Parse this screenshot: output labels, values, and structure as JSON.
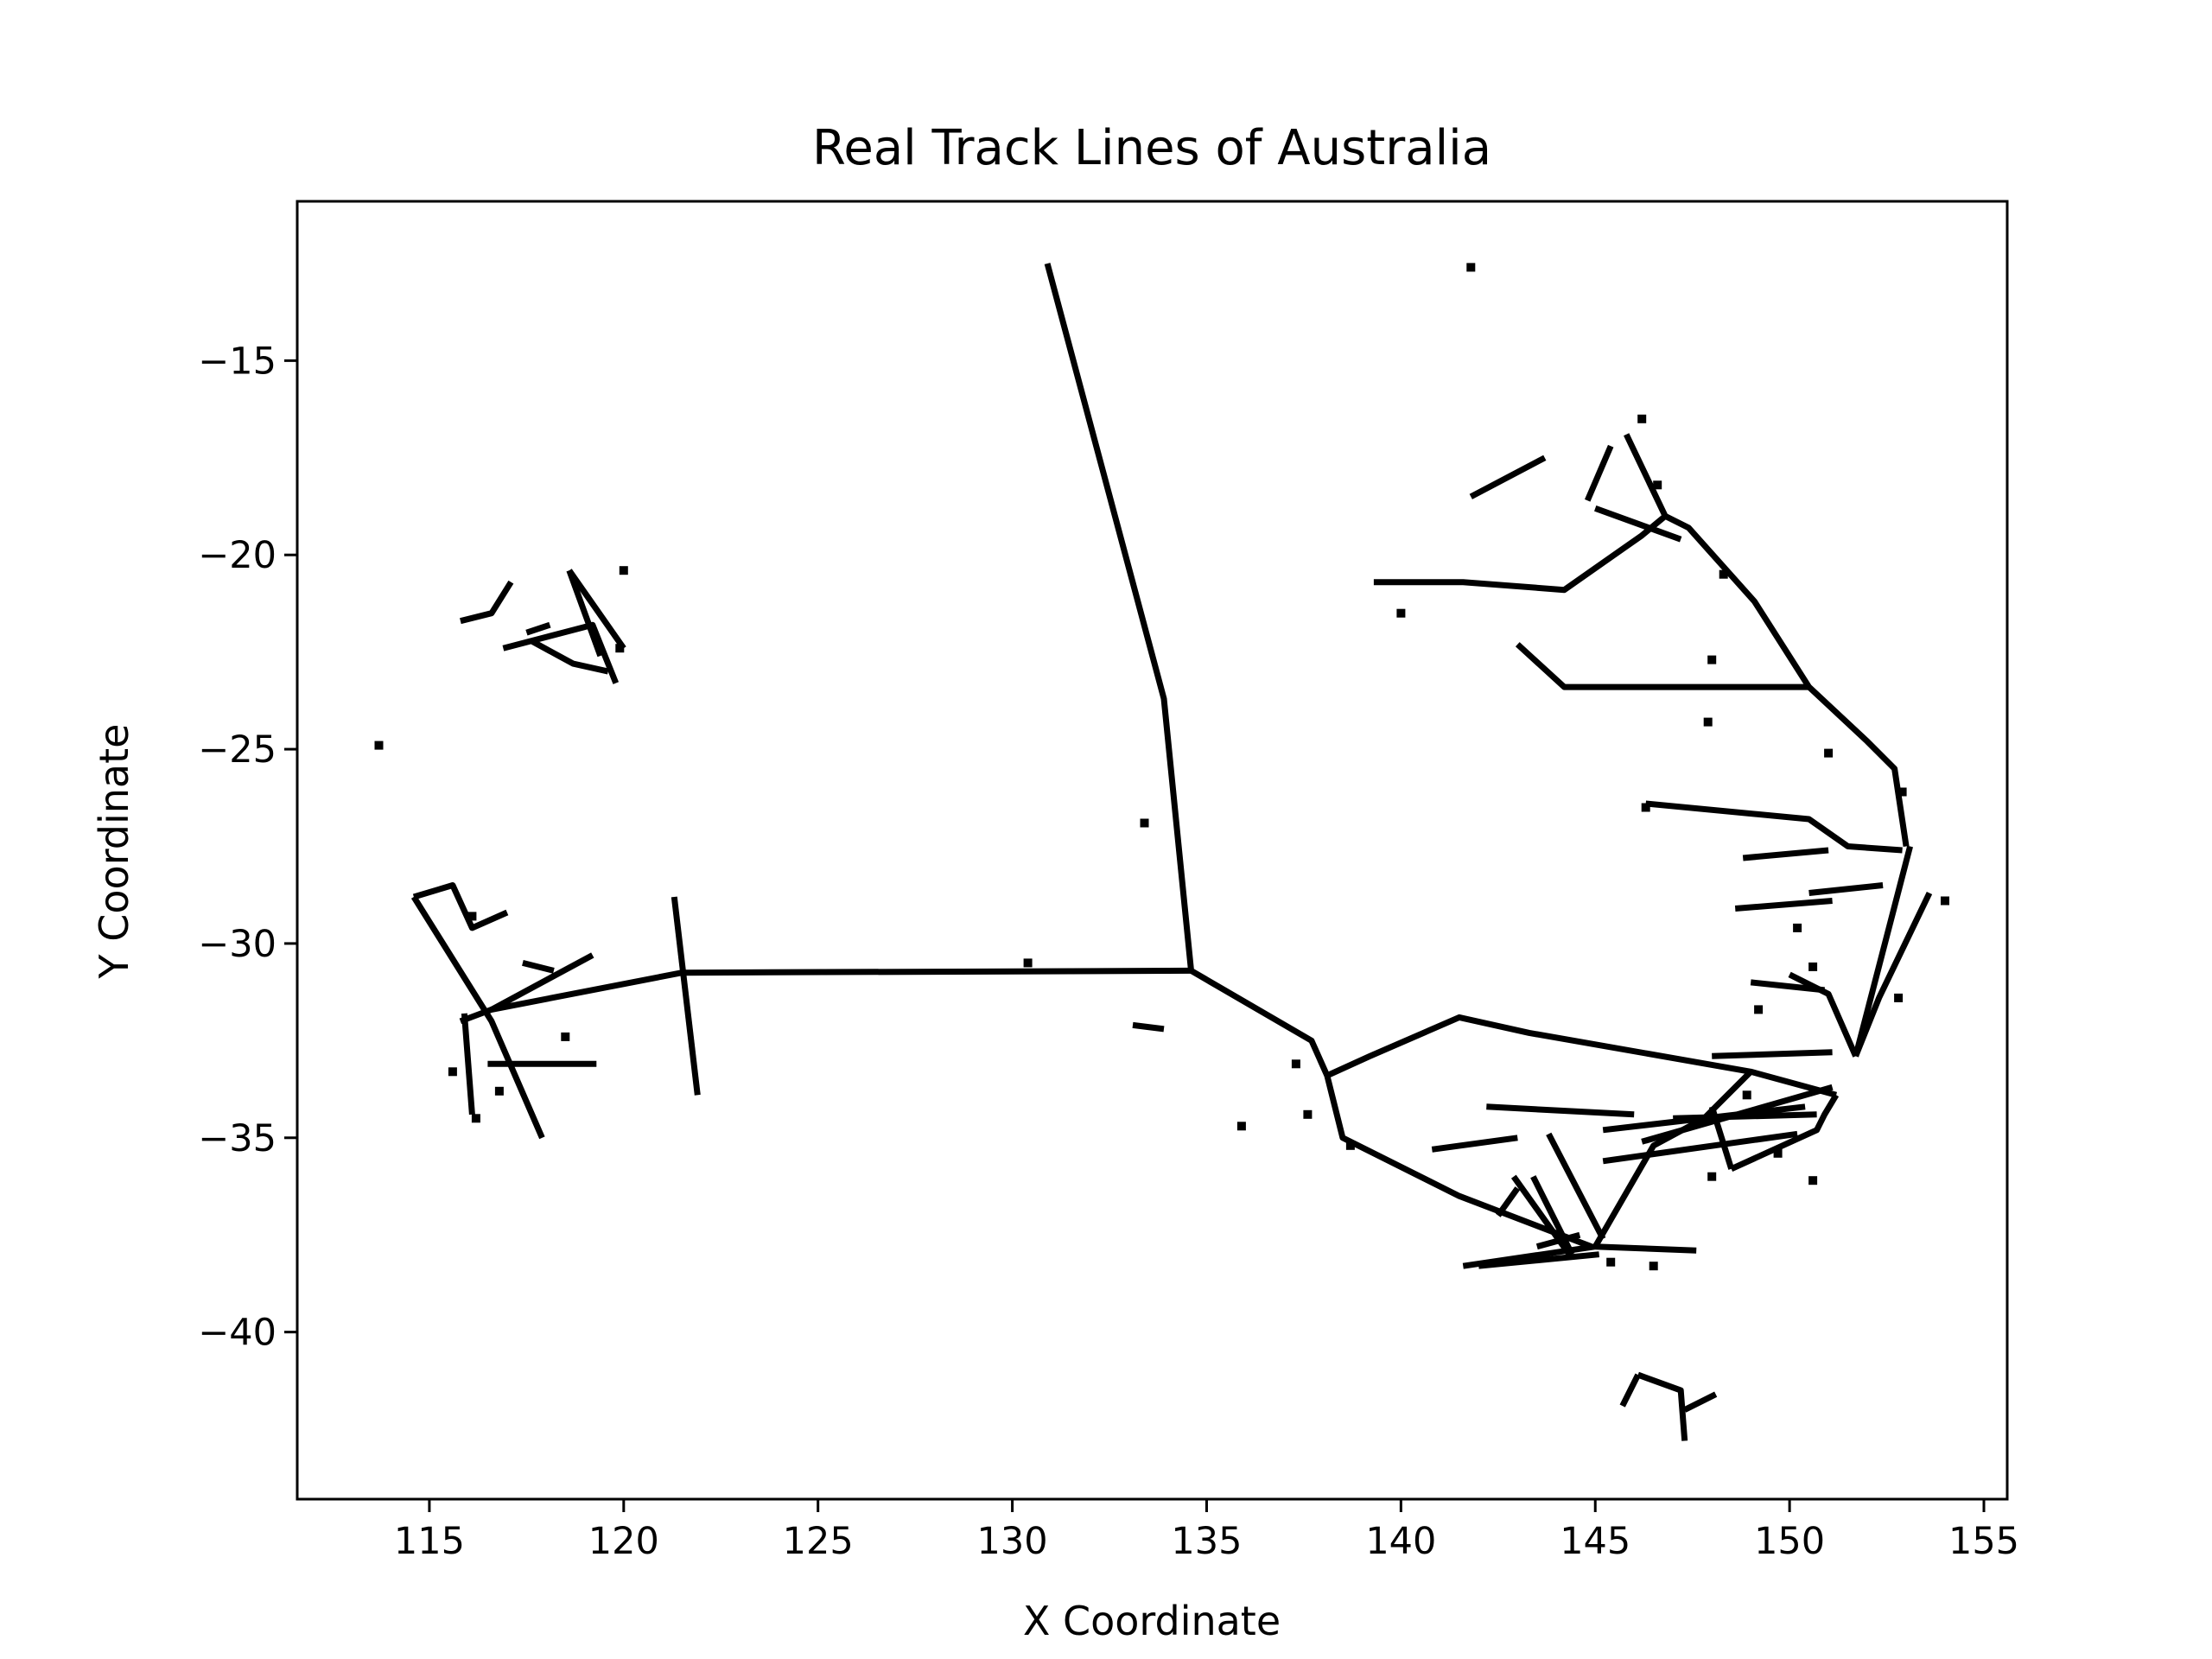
{
  "chart_data": {
    "type": "line",
    "title": "Real Track Lines of Australia",
    "xlabel": "X Coordinate",
    "ylabel": "Y Coordinate",
    "xlim": [
      111.6,
      155.6
    ],
    "ylim": [
      -44.3,
      -10.9
    ],
    "xticks": [
      115,
      120,
      125,
      130,
      135,
      140,
      145,
      150,
      155
    ],
    "xtick_labels": [
      "115",
      "120",
      "125",
      "130",
      "135",
      "140",
      "145",
      "150",
      "155"
    ],
    "yticks": [
      -15,
      -20,
      -25,
      -30,
      -35,
      -40
    ],
    "ytick_labels": [
      "−15",
      "−20",
      "−25",
      "−30",
      "−35",
      "−40"
    ],
    "grid": false,
    "line_color": "#000000",
    "series": [
      {
        "values": [
          [
            130.9,
            -12.5
          ],
          [
            133.9,
            -23.7
          ],
          [
            134.6,
            -30.7
          ],
          [
            137.7,
            -32.5
          ],
          [
            138.1,
            -33.4
          ],
          [
            138.5,
            -35.0
          ],
          [
            141.5,
            -36.5
          ],
          [
            144.9,
            -37.8
          ]
        ]
      },
      {
        "values": [
          [
            134.6,
            -30.7
          ],
          [
            121.5,
            -30.75
          ],
          [
            116.6,
            -31.7
          ],
          [
            115.8,
            -32.0
          ]
        ]
      },
      {
        "values": [
          [
            121.3,
            -28.8
          ],
          [
            121.9,
            -33.9
          ]
        ]
      },
      {
        "values": [
          [
            116.6,
            -31.7
          ],
          [
            119.2,
            -30.3
          ]
        ]
      },
      {
        "values": [
          [
            114.6,
            -28.8
          ],
          [
            115.6,
            -28.5
          ],
          [
            116.1,
            -29.6
          ],
          [
            117.0,
            -29.2
          ]
        ]
      },
      {
        "values": [
          [
            114.6,
            -28.8
          ],
          [
            116.6,
            -32.0
          ],
          [
            117.9,
            -35.0
          ]
        ]
      },
      {
        "values": [
          [
            116.5,
            -33.1
          ],
          [
            119.3,
            -33.1
          ]
        ]
      },
      {
        "values": [
          [
            117.4,
            -30.5
          ],
          [
            118.2,
            -30.7
          ]
        ]
      },
      {
        "values": [
          [
            115.9,
            -31.8
          ],
          [
            116.1,
            -34.4
          ]
        ]
      },
      {
        "values": [
          [
            138.1,
            -33.4
          ],
          [
            139.2,
            -32.9
          ],
          [
            141.5,
            -31.9
          ],
          [
            143.3,
            -32.3
          ],
          [
            149.0,
            -33.3
          ],
          [
            151.2,
            -33.9
          ]
        ]
      },
      {
        "values": [
          [
            149.0,
            -33.3
          ],
          [
            147.8,
            -34.5
          ],
          [
            146.5,
            -35.2
          ],
          [
            145.0,
            -37.8
          ]
        ]
      },
      {
        "values": [
          [
            151.2,
            -33.9
          ],
          [
            150.9,
            -34.4
          ],
          [
            150.7,
            -34.8
          ],
          [
            148.5,
            -35.8
          ]
        ]
      },
      {
        "values": [
          [
            146.2,
            -35.1
          ],
          [
            151.1,
            -33.7
          ]
        ]
      },
      {
        "values": [
          [
            142.2,
            -34.2
          ],
          [
            146.0,
            -34.4
          ]
        ]
      },
      {
        "values": [
          [
            148.0,
            -32.9
          ],
          [
            151.1,
            -32.8
          ]
        ]
      },
      {
        "values": [
          [
            151.7,
            -32.9
          ],
          [
            153.1,
            -27.5
          ]
        ]
      },
      {
        "values": [
          [
            151.7,
            -32.9
          ],
          [
            151.0,
            -31.3
          ],
          [
            150.0,
            -30.8
          ]
        ]
      },
      {
        "values": [
          [
            149.0,
            -31.0
          ],
          [
            150.9,
            -31.2
          ]
        ]
      },
      {
        "values": [
          [
            151.7,
            -32.9
          ],
          [
            152.3,
            -31.4
          ],
          [
            153.6,
            -28.7
          ]
        ]
      },
      {
        "values": [
          [
            153.0,
            -27.5
          ],
          [
            152.7,
            -25.5
          ],
          [
            152.0,
            -24.8
          ],
          [
            150.5,
            -23.4
          ],
          [
            149.1,
            -21.2
          ],
          [
            147.4,
            -19.3
          ],
          [
            146.8,
            -19.0
          ],
          [
            145.8,
            -16.9
          ]
        ]
      },
      {
        "values": [
          [
            152.9,
            -27.6
          ],
          [
            151.5,
            -27.5
          ],
          [
            150.5,
            -26.8
          ],
          [
            146.3,
            -26.4
          ]
        ]
      },
      {
        "values": [
          [
            150.5,
            -23.4
          ],
          [
            144.2,
            -23.4
          ],
          [
            143.0,
            -22.3
          ]
        ]
      },
      {
        "values": [
          [
            146.8,
            -19.0
          ],
          [
            146.2,
            -19.5
          ],
          [
            144.2,
            -20.9
          ],
          [
            141.6,
            -20.7
          ],
          [
            139.3,
            -20.7
          ]
        ]
      },
      {
        "values": [
          [
            145.0,
            -18.8
          ],
          [
            147.2,
            -19.6
          ]
        ]
      },
      {
        "values": [
          [
            141.8,
            -18.5
          ],
          [
            143.7,
            -17.5
          ]
        ]
      },
      {
        "values": [
          [
            145.4,
            -17.2
          ],
          [
            144.8,
            -18.6
          ]
        ]
      },
      {
        "values": [
          [
            150.5,
            -28.7
          ],
          [
            152.4,
            -28.5
          ]
        ]
      },
      {
        "values": [
          [
            148.8,
            -27.8
          ],
          [
            151.0,
            -27.6
          ]
        ]
      },
      {
        "values": [
          [
            148.6,
            -29.1
          ],
          [
            151.1,
            -28.9
          ]
        ]
      },
      {
        "values": [
          [
            147.0,
            -34.5
          ],
          [
            150.7,
            -34.4
          ]
        ]
      },
      {
        "values": [
          [
            145.2,
            -34.8
          ],
          [
            150.4,
            -34.2
          ]
        ]
      },
      {
        "values": [
          [
            145.2,
            -35.6
          ],
          [
            150.2,
            -34.9
          ]
        ]
      },
      {
        "values": [
          [
            148.5,
            -35.8
          ],
          [
            148.0,
            -34.2
          ]
        ]
      },
      {
        "values": [
          [
            141.6,
            -38.3
          ],
          [
            145.0,
            -37.8
          ],
          [
            147.6,
            -37.9
          ]
        ]
      },
      {
        "values": [
          [
            142.0,
            -38.3
          ],
          [
            145.1,
            -38.0
          ]
        ]
      },
      {
        "values": [
          [
            142.9,
            -36.0
          ],
          [
            144.4,
            -38.1
          ]
        ]
      },
      {
        "values": [
          [
            140.8,
            -35.3
          ],
          [
            143.0,
            -35.0
          ]
        ]
      },
      {
        "values": [
          [
            143.8,
            -34.9
          ],
          [
            145.2,
            -37.6
          ]
        ]
      },
      {
        "values": [
          [
            143.4,
            -36.0
          ],
          [
            144.4,
            -38.0
          ]
        ]
      },
      {
        "values": [
          [
            142.5,
            -37.0
          ],
          [
            143.0,
            -36.3
          ]
        ]
      },
      {
        "values": [
          [
            143.5,
            -37.8
          ],
          [
            144.6,
            -37.5
          ]
        ]
      },
      {
        "values": [
          [
            146.1,
            -41.1
          ],
          [
            145.7,
            -41.9
          ]
        ]
      },
      {
        "values": [
          [
            146.1,
            -41.1
          ],
          [
            147.2,
            -41.5
          ],
          [
            147.3,
            -42.8
          ]
        ]
      },
      {
        "values": [
          [
            147.3,
            -42.0
          ],
          [
            148.1,
            -41.6
          ]
        ]
      },
      {
        "values": [
          [
            117.1,
            -20.7
          ],
          [
            116.6,
            -21.5
          ],
          [
            115.8,
            -21.7
          ]
        ]
      },
      {
        "values": [
          [
            116.9,
            -22.4
          ],
          [
            119.2,
            -21.8
          ],
          [
            119.8,
            -23.3
          ]
        ]
      },
      {
        "values": [
          [
            117.6,
            -22.2
          ],
          [
            118.7,
            -22.8
          ],
          [
            119.6,
            -23.0
          ]
        ]
      },
      {
        "values": [
          [
            118.6,
            -20.4
          ],
          [
            120.0,
            -22.4
          ]
        ]
      },
      {
        "values": [
          [
            118.6,
            -20.4
          ],
          [
            119.4,
            -22.6
          ]
        ]
      },
      {
        "values": [
          [
            117.5,
            -22.0
          ],
          [
            118.1,
            -21.8
          ]
        ]
      },
      {
        "values": [
          [
            133.1,
            -32.1
          ],
          [
            133.9,
            -32.2
          ]
        ]
      }
    ],
    "points": [
      [
        141.8,
        -12.6
      ],
      [
        113.7,
        -24.9
      ],
      [
        133.4,
        -26.9
      ],
      [
        130.4,
        -30.5
      ],
      [
        120.0,
        -20.4
      ],
      [
        119.9,
        -22.4
      ],
      [
        135.9,
        -34.7
      ],
      [
        137.3,
        -33.1
      ],
      [
        137.6,
        -34.4
      ],
      [
        138.7,
        -35.2
      ],
      [
        140.0,
        -21.5
      ],
      [
        146.6,
        -18.2
      ],
      [
        148.3,
        -20.5
      ],
      [
        148.0,
        -22.7
      ],
      [
        147.9,
        -24.3
      ],
      [
        151.0,
        -25.1
      ],
      [
        150.2,
        -29.6
      ],
      [
        152.8,
        -31.4
      ],
      [
        154.0,
        -28.9
      ],
      [
        146.3,
        -26.5
      ],
      [
        150.6,
        -36.1
      ],
      [
        149.7,
        -35.4
      ],
      [
        148.0,
        -36.0
      ],
      [
        146.5,
        -38.3
      ],
      [
        145.4,
        -38.2
      ],
      [
        116.2,
        -34.5
      ],
      [
        115.6,
        -33.3
      ],
      [
        116.8,
        -33.8
      ],
      [
        118.5,
        -32.4
      ],
      [
        116.1,
        -29.3
      ],
      [
        149.2,
        -31.7
      ],
      [
        150.6,
        -30.6
      ],
      [
        148.9,
        -33.9
      ],
      [
        152.9,
        -26.1
      ],
      [
        146.2,
        -16.5
      ]
    ]
  }
}
